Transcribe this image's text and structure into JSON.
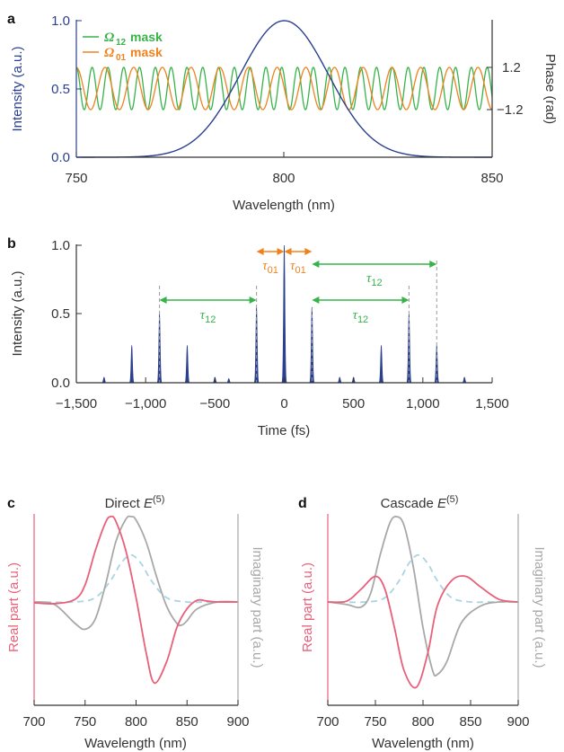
{
  "colors": {
    "blue": "#2b3f8f",
    "green": "#37b34a",
    "orange": "#f0821e",
    "pink": "#e8607a",
    "gray": "#a8a8a8",
    "lightblue": "#a9d4e4",
    "axis": "#333333"
  },
  "panels": {
    "a": {
      "label": "a",
      "xlabel": "Wavelength (nm)",
      "ylabel_left": "Intensity (a.u.)",
      "ylabel_right": "Phase (rad)",
      "xticks": [
        "750",
        "800",
        "850"
      ],
      "yticks_left": [
        "0.0",
        "0.5",
        "1.0"
      ],
      "yticks_right": [
        "1.2",
        "−1.2"
      ],
      "legend": [
        {
          "sym": "Ω",
          "sub": "12",
          "text": "mask"
        },
        {
          "sym": "Ω",
          "sub": "01",
          "text": "mask"
        }
      ]
    },
    "b": {
      "label": "b",
      "xlabel": "Time (fs)",
      "ylabel": "Intensity (a.u.)",
      "xticks": [
        "−1,500",
        "−1,000",
        "−500",
        "0",
        "500",
        "1,000",
        "1,500"
      ],
      "yticks": [
        "0.0",
        "0.5",
        "1.0"
      ],
      "tau01": {
        "sym": "τ",
        "sub": "01"
      },
      "tau12": {
        "sym": "τ",
        "sub": "12"
      }
    },
    "c": {
      "label": "c",
      "title": "Direct ",
      "title_sym": "E",
      "title_sup": "(5)",
      "xlabel": "Wavelength (nm)",
      "ylabel_left": "Real part (a.u.)",
      "ylabel_right": "Imaginary part (a.u.)",
      "xticks": [
        "700",
        "750",
        "800",
        "850",
        "900"
      ]
    },
    "d": {
      "label": "d",
      "title": "Cascade ",
      "title_sym": "E",
      "title_sup": "(5)",
      "xlabel": "Wavelength (nm)",
      "ylabel_left": "Real part (a.u.)",
      "ylabel_right": "Imaginary part (a.u.)",
      "xticks": [
        "700",
        "750",
        "800",
        "850",
        "900"
      ]
    }
  },
  "chart_data": [
    {
      "panel": "a",
      "type": "line",
      "xlabel": "Wavelength (nm)",
      "ylabel": "Intensity (a.u.)",
      "xlim": [
        750,
        850
      ],
      "ylim": [
        0,
        1
      ],
      "y2label": "Phase (rad)",
      "y2ticks": [
        1.2,
        -1.2
      ],
      "series": [
        {
          "name": "",
          "kind": "gaussian",
          "center_nm": 800,
          "fwhm_nm": 25,
          "peak": 1.0
        },
        {
          "name": "Ω12 mask",
          "kind": "sinusoid",
          "period_nm": 3.8,
          "amplitude_rad": 1.2
        },
        {
          "name": "Ω01 mask",
          "kind": "sinusoid",
          "period_nm": 6.9,
          "amplitude_rad": 1.2
        }
      ]
    },
    {
      "panel": "b",
      "type": "line",
      "xlabel": "Time (fs)",
      "ylabel": "Intensity (a.u.)",
      "xlim": [
        -1500,
        1500
      ],
      "ylim": [
        0,
        1
      ],
      "peaks": [
        {
          "t": -1300,
          "v": 0.04
        },
        {
          "t": -1100,
          "v": 0.27
        },
        {
          "t": -900,
          "v": 0.5
        },
        {
          "t": -700,
          "v": 0.27
        },
        {
          "t": -500,
          "v": 0.04
        },
        {
          "t": -400,
          "v": 0.03
        },
        {
          "t": -200,
          "v": 0.55
        },
        {
          "t": 0,
          "v": 1.0
        },
        {
          "t": 200,
          "v": 0.55
        },
        {
          "t": 400,
          "v": 0.04
        },
        {
          "t": 500,
          "v": 0.04
        },
        {
          "t": 700,
          "v": 0.27
        },
        {
          "t": 900,
          "v": 0.5
        },
        {
          "t": 1100,
          "v": 0.27
        },
        {
          "t": 1300,
          "v": 0.04
        }
      ],
      "markers_t": [
        -900,
        -200,
        0,
        200,
        900,
        1100
      ],
      "annotations": [
        {
          "label": "τ01",
          "from": -200,
          "to": 0
        },
        {
          "label": "τ01",
          "from": 0,
          "to": 200
        },
        {
          "label": "τ12",
          "from": -900,
          "to": -200
        },
        {
          "label": "τ12",
          "from": 200,
          "to": 900
        },
        {
          "label": "τ12",
          "from": 200,
          "to": 1100
        }
      ]
    },
    {
      "panel": "c",
      "type": "line",
      "title": "Direct E(5)",
      "xlabel": "Wavelength (nm)",
      "xlim": [
        700,
        900
      ],
      "ylim": [
        -1,
        1
      ],
      "series": [
        {
          "name": "Real part",
          "x": [
            700,
            720,
            740,
            750,
            760,
            770,
            775,
            780,
            790,
            800,
            810,
            818,
            830,
            840,
            850,
            860,
            870,
            880,
            900
          ],
          "y": [
            -0.01,
            -0.02,
            0.03,
            0.2,
            0.6,
            0.93,
            1.0,
            0.95,
            0.6,
            0.05,
            -0.6,
            -0.95,
            -0.7,
            -0.3,
            -0.08,
            0.02,
            0.01,
            0.0,
            0.0
          ]
        },
        {
          "name": "Imaginary part",
          "x": [
            700,
            720,
            740,
            750,
            760,
            770,
            780,
            790,
            795,
            800,
            810,
            820,
            830,
            840,
            845,
            850,
            860,
            880,
            900
          ],
          "y": [
            0.0,
            -0.03,
            -0.25,
            -0.32,
            -0.2,
            0.2,
            0.7,
            0.97,
            1.0,
            0.96,
            0.7,
            0.3,
            -0.05,
            -0.25,
            -0.27,
            -0.22,
            -0.08,
            0.0,
            0.0
          ]
        },
        {
          "name": "envelope",
          "x": [
            700,
            740,
            760,
            775,
            785,
            795,
            805,
            815,
            830,
            850,
            870,
            900
          ],
          "y": [
            0.0,
            0.0,
            0.05,
            0.25,
            0.45,
            0.55,
            0.45,
            0.25,
            0.05,
            0.0,
            0.0,
            0.0
          ]
        }
      ]
    },
    {
      "panel": "d",
      "type": "line",
      "title": "Cascade E(5)",
      "xlabel": "Wavelength (nm)",
      "xlim": [
        700,
        900
      ],
      "ylim": [
        -1,
        1
      ],
      "series": [
        {
          "name": "Real part",
          "x": [
            700,
            720,
            735,
            750,
            760,
            770,
            780,
            793,
            805,
            815,
            830,
            845,
            860,
            880,
            900
          ],
          "y": [
            0.0,
            0.01,
            0.15,
            0.3,
            0.15,
            -0.3,
            -0.8,
            -1.0,
            -0.6,
            -0.05,
            0.25,
            0.3,
            0.18,
            0.03,
            0.0
          ]
        },
        {
          "name": "Imaginary part",
          "x": [
            700,
            720,
            735,
            745,
            755,
            765,
            772,
            780,
            790,
            800,
            810,
            815,
            825,
            840,
            860,
            880,
            900
          ],
          "y": [
            0.0,
            -0.03,
            -0.06,
            0.1,
            0.55,
            0.92,
            1.0,
            0.9,
            0.4,
            -0.3,
            -0.8,
            -0.85,
            -0.7,
            -0.25,
            -0.05,
            0.0,
            0.0
          ]
        },
        {
          "name": "envelope",
          "x": [
            700,
            740,
            760,
            775,
            785,
            795,
            805,
            815,
            830,
            850,
            870,
            900
          ],
          "y": [
            0.0,
            0.0,
            0.05,
            0.25,
            0.45,
            0.55,
            0.45,
            0.25,
            0.05,
            0.0,
            0.0,
            0.0
          ]
        }
      ]
    }
  ]
}
